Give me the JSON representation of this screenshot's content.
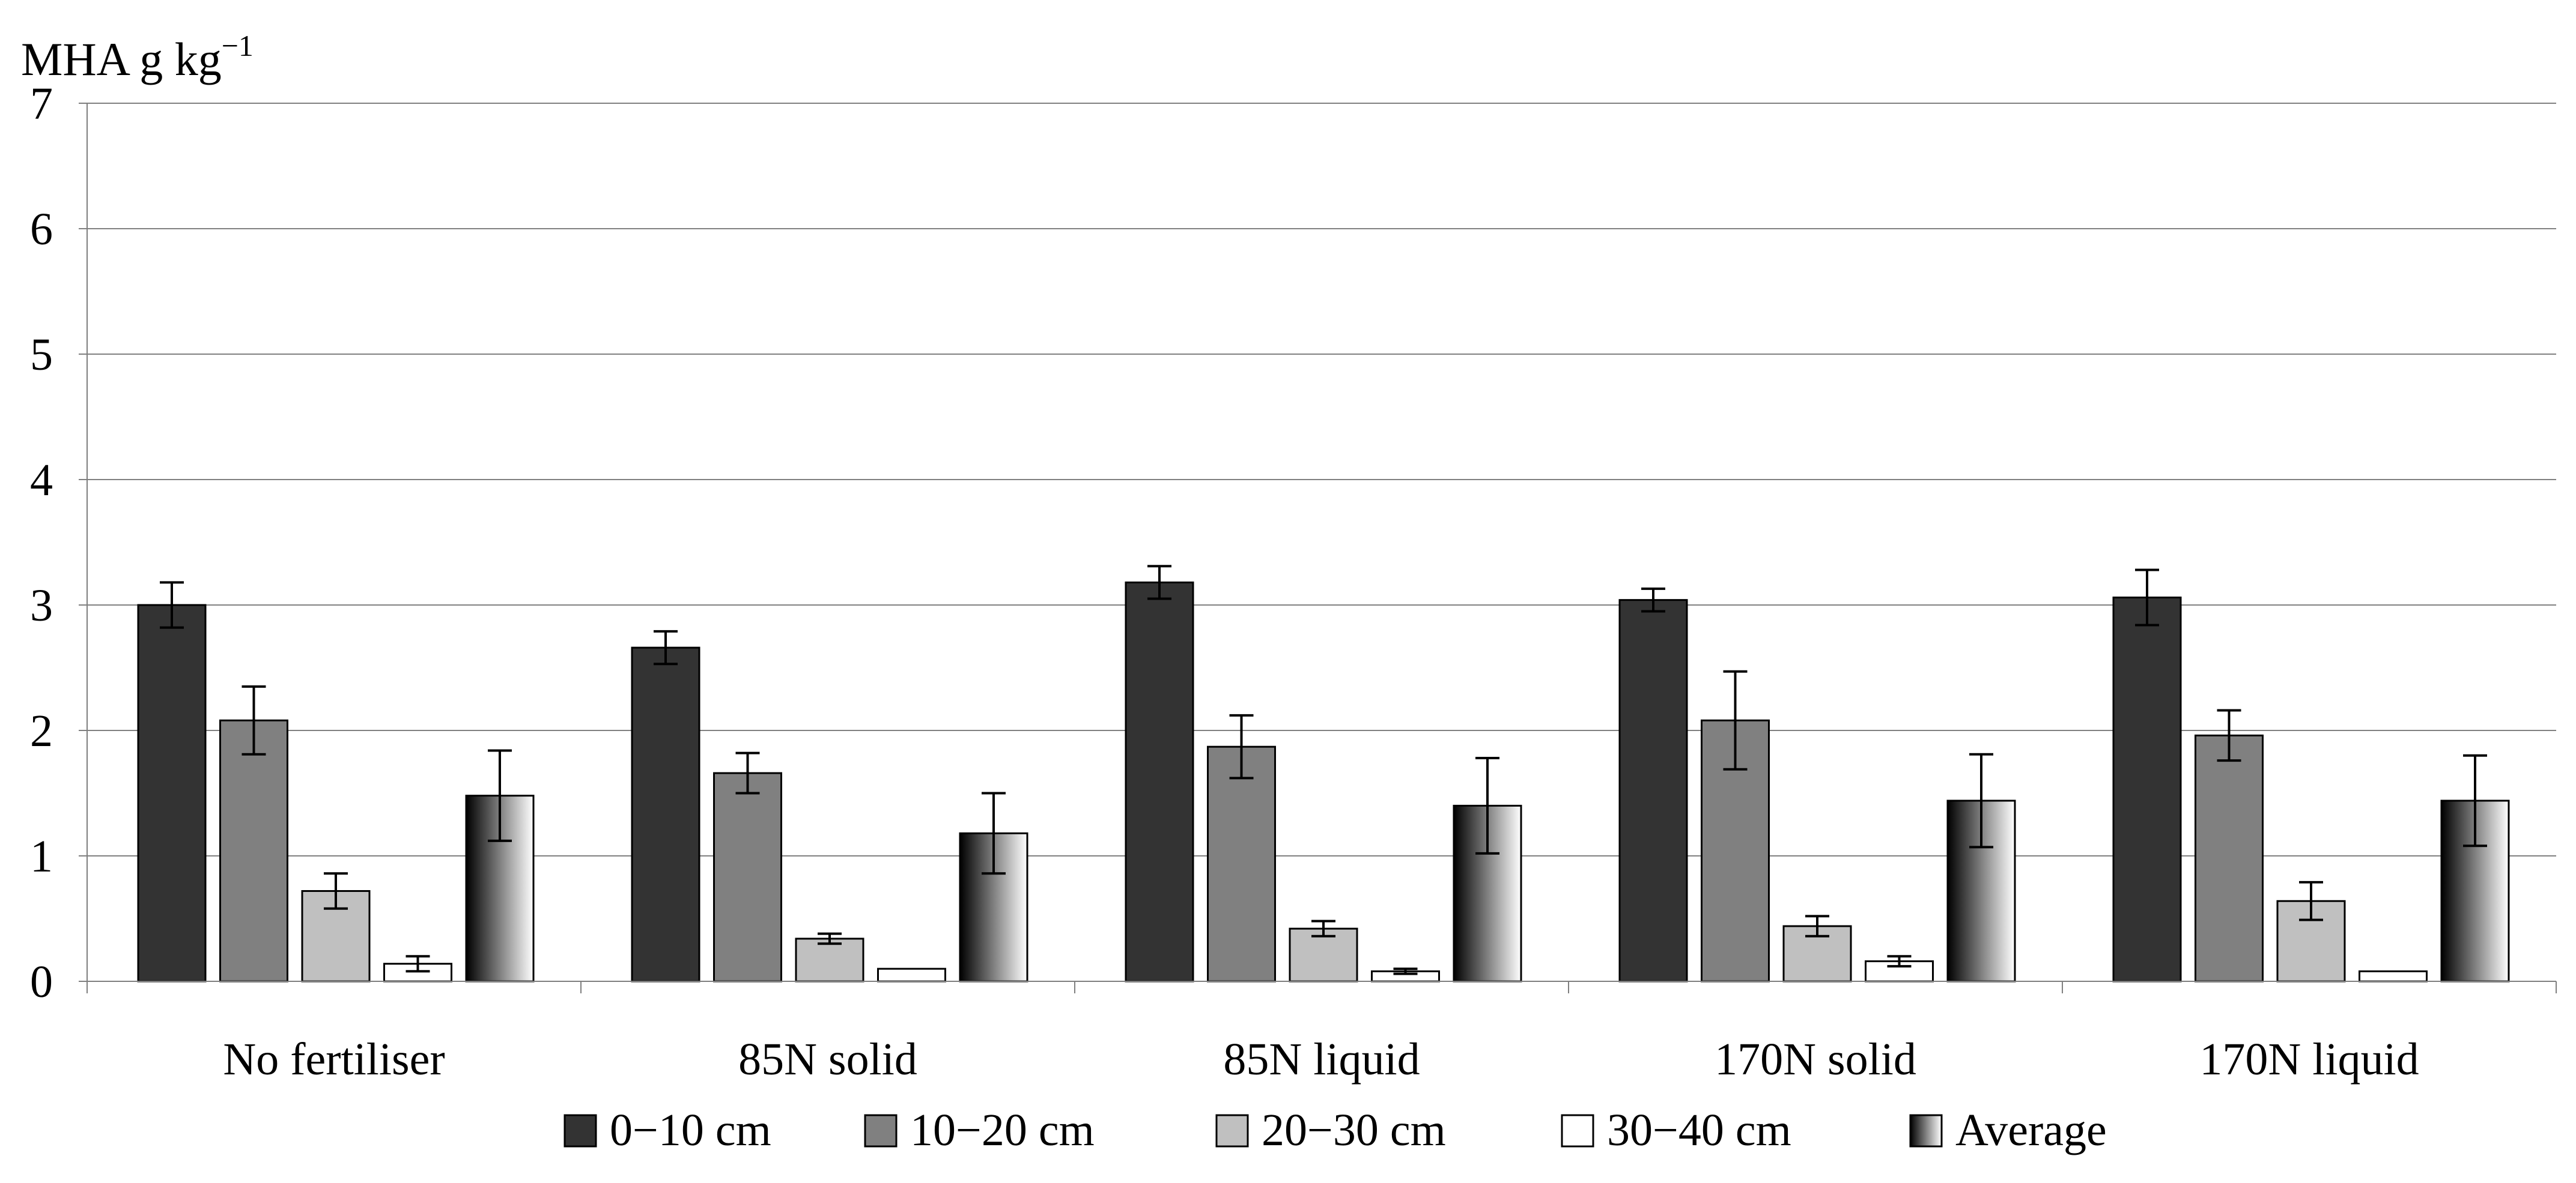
{
  "chart_data": {
    "type": "bar",
    "ylabel": "MHA g kg",
    "ylabel_superscript": "−1",
    "ylim": [
      0,
      7
    ],
    "yticks": [
      "0",
      "1",
      "2",
      "3",
      "4",
      "5",
      "6",
      "7"
    ],
    "grid": true,
    "legend_position": "bottom",
    "categories": [
      "No fertiliser",
      "85N solid",
      "85N liquid",
      "170N solid",
      "170N liquid"
    ],
    "series": [
      {
        "name": "0−10 cm",
        "fill": "#333333",
        "values": [
          3.0,
          2.66,
          3.18,
          3.04,
          3.06
        ],
        "errors": [
          0.18,
          0.13,
          0.13,
          0.09,
          0.22
        ]
      },
      {
        "name": "10−20 cm",
        "fill": "#808080",
        "values": [
          2.08,
          1.66,
          1.87,
          2.08,
          1.96
        ],
        "errors": [
          0.27,
          0.16,
          0.25,
          0.39,
          0.2
        ]
      },
      {
        "name": "20−30 cm",
        "fill": "#c0c0c0",
        "values": [
          0.72,
          0.34,
          0.42,
          0.44,
          0.64
        ],
        "errors": [
          0.14,
          0.04,
          0.06,
          0.08,
          0.15
        ]
      },
      {
        "name": "30−40 cm",
        "fill": "#ffffff",
        "values": [
          0.14,
          0.1,
          0.08,
          0.16,
          0.08
        ],
        "errors": [
          0.06,
          0.0,
          0.02,
          0.04,
          0.0
        ]
      },
      {
        "name": "Average",
        "fill": "gradient",
        "values": [
          1.48,
          1.18,
          1.4,
          1.44,
          1.44
        ],
        "errors": [
          0.36,
          0.32,
          0.38,
          0.37,
          0.36
        ]
      }
    ]
  },
  "colors": {
    "axis": "#7f7f7f",
    "grid": "#808080",
    "bar_stroke": "#000000",
    "gradient_dark": "#000000",
    "gradient_light": "#ffffff"
  }
}
